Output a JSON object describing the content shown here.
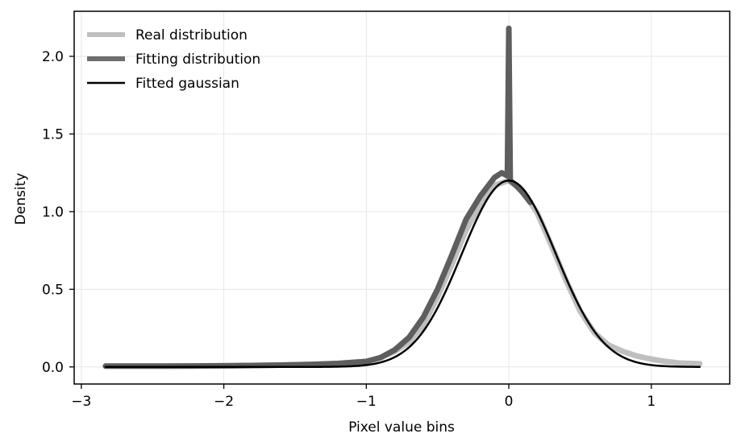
{
  "chart_data": {
    "type": "line",
    "title": "",
    "xlabel": "Pixel value bins",
    "ylabel": "Density",
    "xlim": [
      -3.05,
      1.55
    ],
    "ylim": [
      -0.11,
      2.29
    ],
    "x_ticks": [
      -3,
      -2,
      -1,
      0,
      1
    ],
    "x_tick_labels": [
      "−3",
      "−2",
      "−1",
      "0",
      "1"
    ],
    "y_ticks": [
      0.0,
      0.5,
      1.0,
      1.5,
      2.0
    ],
    "y_tick_labels": [
      "0.0",
      "0.5",
      "1.0",
      "1.5",
      "2.0"
    ],
    "grid": true,
    "legend_position": "top-left",
    "series": [
      {
        "name": "Real distribution",
        "color": "#bfbfbf",
        "style": "thick",
        "x": [
          -2.83,
          -2.6,
          -2.4,
          -2.2,
          -2.0,
          -1.8,
          -1.6,
          -1.4,
          -1.2,
          -1.0,
          -0.9,
          -0.8,
          -0.7,
          -0.6,
          -0.5,
          -0.4,
          -0.3,
          -0.2,
          -0.1,
          0.0,
          0.1,
          0.2,
          0.3,
          0.4,
          0.5,
          0.6,
          0.7,
          0.8,
          0.9,
          1.0,
          1.1,
          1.2,
          1.34
        ],
        "y": [
          0.005,
          0.005,
          0.005,
          0.006,
          0.007,
          0.009,
          0.012,
          0.016,
          0.022,
          0.035,
          0.06,
          0.1,
          0.16,
          0.27,
          0.45,
          0.66,
          0.88,
          1.05,
          1.17,
          1.2,
          1.13,
          0.99,
          0.78,
          0.56,
          0.36,
          0.22,
          0.14,
          0.1,
          0.07,
          0.05,
          0.035,
          0.025,
          0.02
        ]
      },
      {
        "name": "Fitting distribution",
        "color": "#5e5e5e",
        "style": "thick",
        "x": [
          -2.83,
          -2.6,
          -2.4,
          -2.2,
          -2.0,
          -1.8,
          -1.6,
          -1.4,
          -1.2,
          -1.0,
          -0.9,
          -0.8,
          -0.7,
          -0.6,
          -0.5,
          -0.4,
          -0.3,
          -0.2,
          -0.1,
          -0.05,
          -0.01,
          0.0,
          0.01,
          0.05,
          0.1,
          0.15
        ],
        "y": [
          0.005,
          0.005,
          0.005,
          0.006,
          0.007,
          0.009,
          0.012,
          0.016,
          0.022,
          0.035,
          0.06,
          0.11,
          0.19,
          0.32,
          0.5,
          0.72,
          0.95,
          1.1,
          1.22,
          1.25,
          1.23,
          2.18,
          1.2,
          1.17,
          1.12,
          1.06
        ]
      },
      {
        "name": "Fitted gaussian",
        "color": "#000000",
        "style": "gaussian",
        "amplitude": 1.2,
        "mean": 0.0,
        "sigma": 0.33,
        "x_range": [
          -2.83,
          1.34
        ]
      }
    ]
  }
}
